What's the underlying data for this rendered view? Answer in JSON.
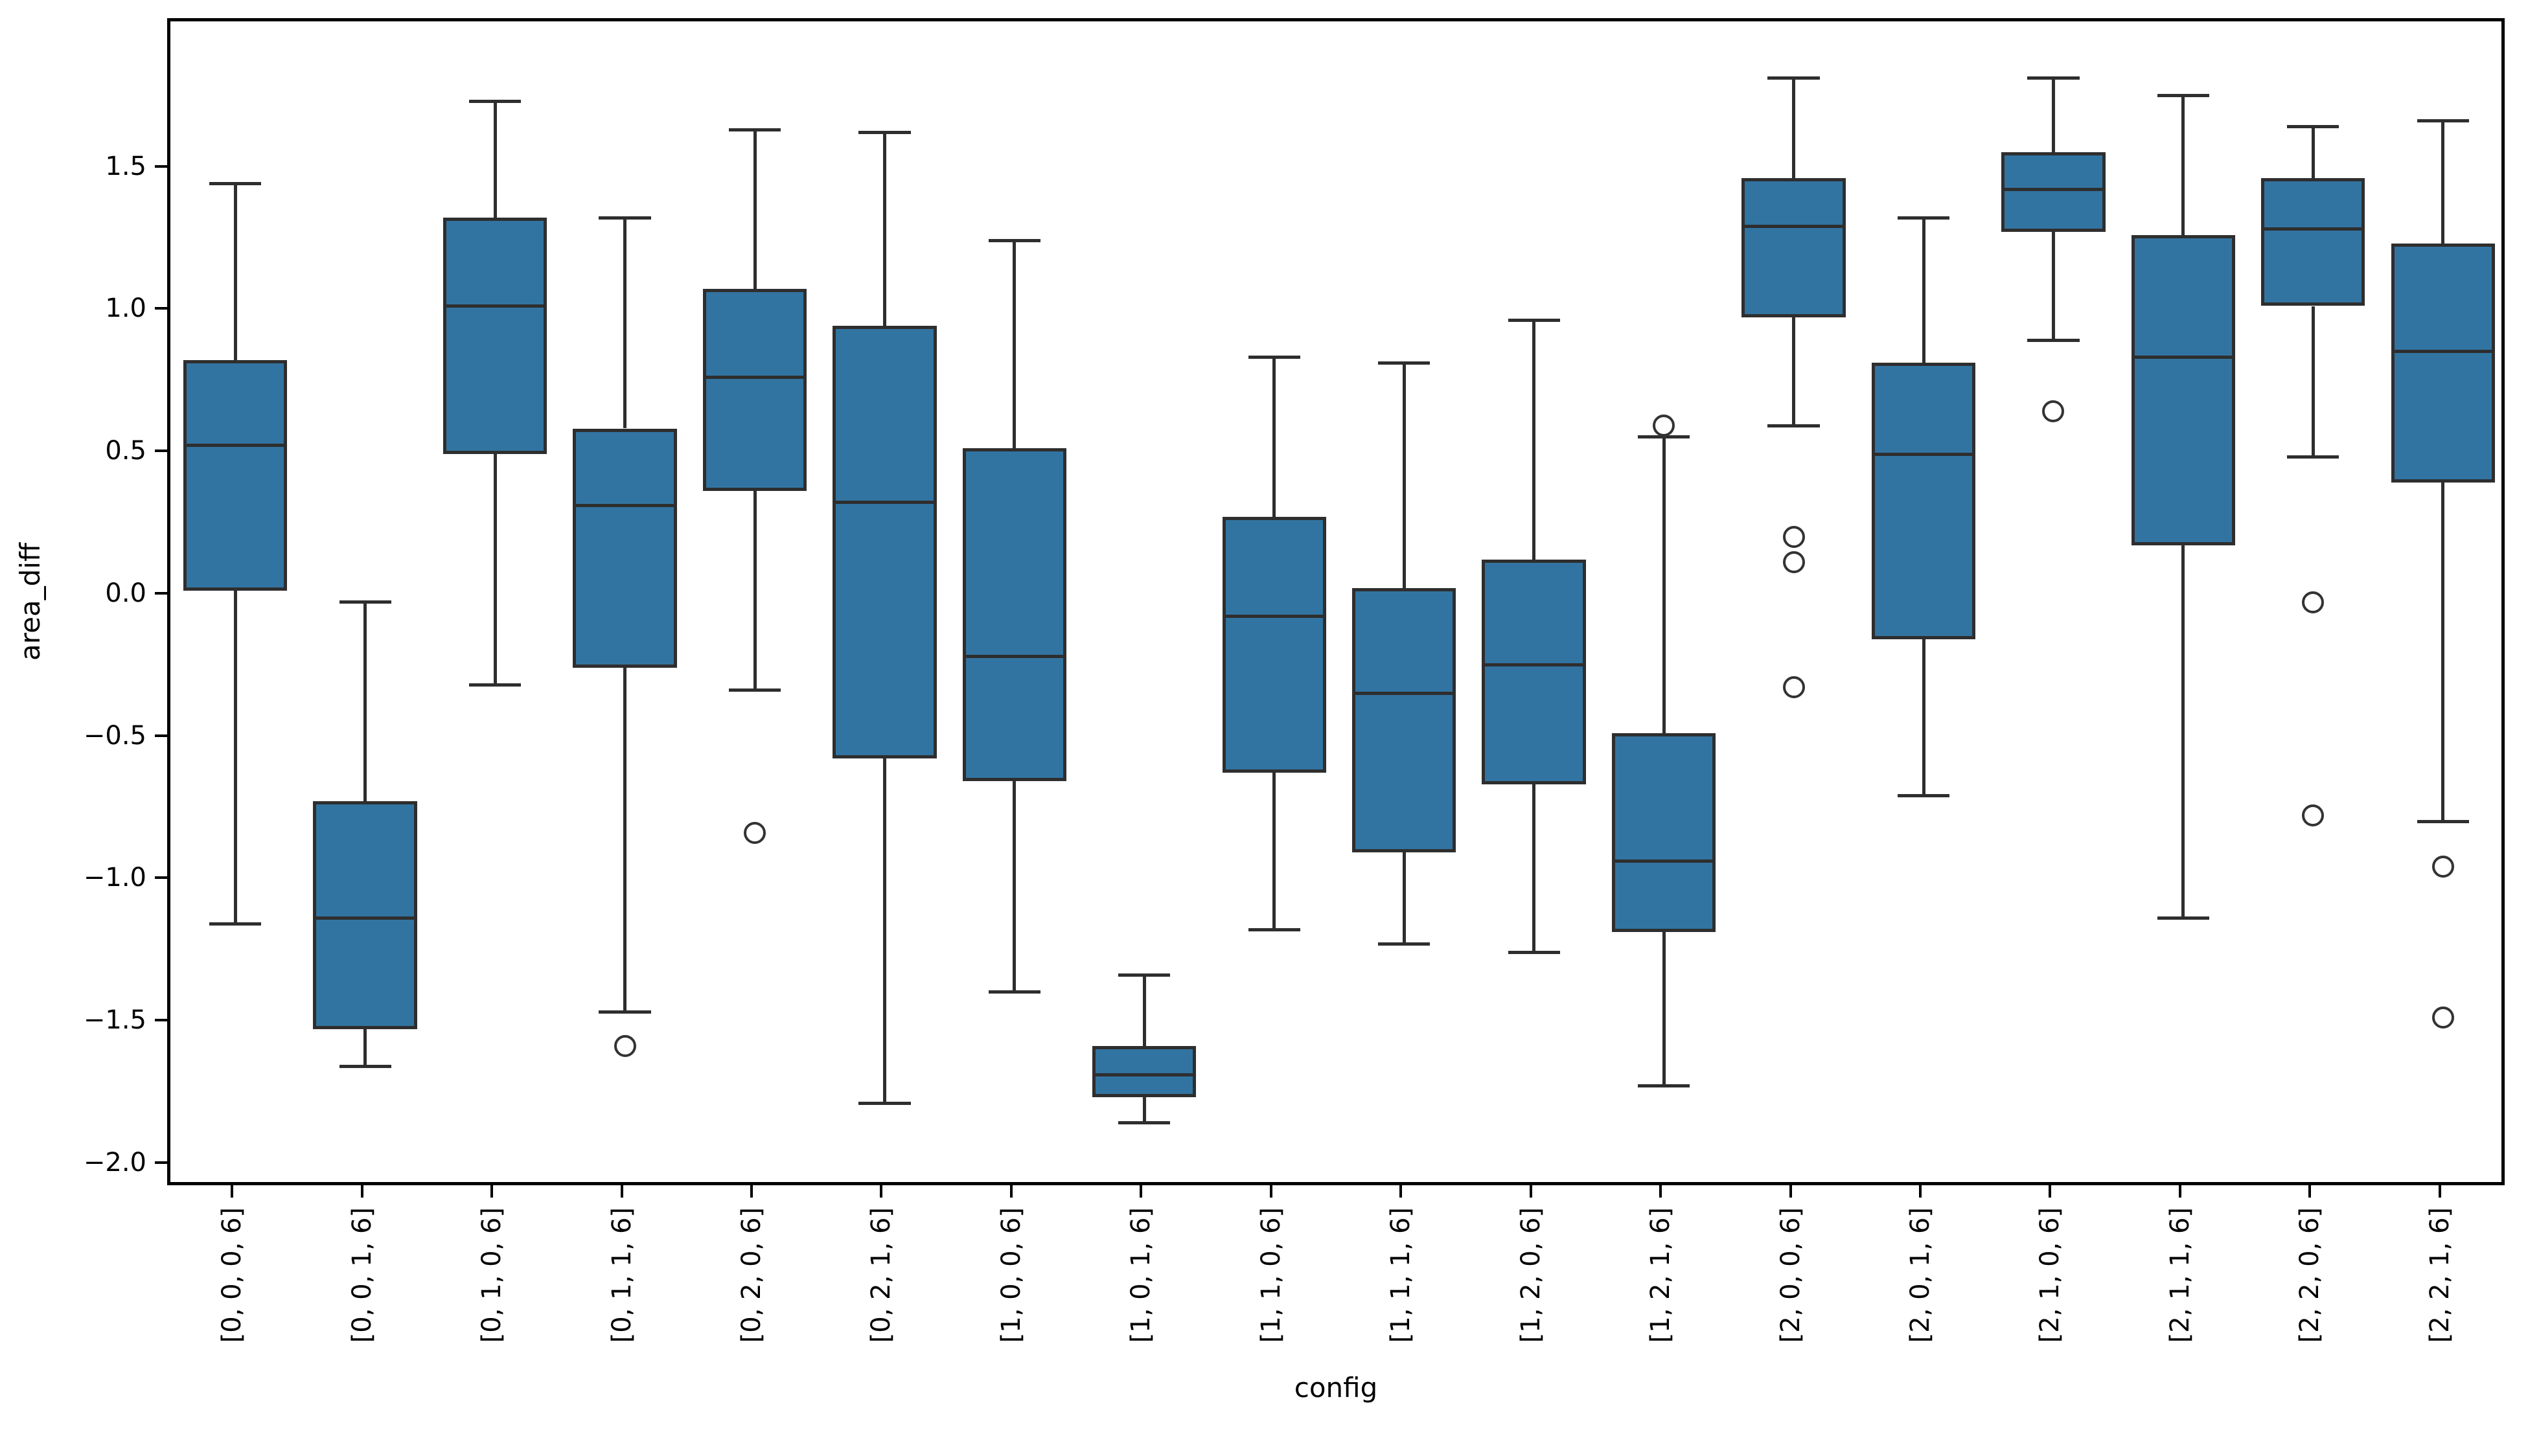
{
  "chart_data": {
    "type": "box",
    "title": "",
    "xlabel": "config",
    "ylabel": "area_diff",
    "grid": false,
    "legend_position": "none",
    "box_fill_color": "#3274A1",
    "box_line_color": "#2e2e2e",
    "axis_color": "#000000",
    "ylim": [
      -2.08,
      2.02
    ],
    "yticks": [
      1.5,
      1.0,
      0.5,
      0.0,
      -0.5,
      -1.0,
      -1.5,
      -2.0
    ],
    "ytick_labels": [
      "1.5",
      "1.0",
      "0.5",
      "0.0",
      "−0.5",
      "−1.0",
      "−1.5",
      "−2.0"
    ],
    "categories": [
      "[0, 0, 0, 6]",
      "[0, 0, 1, 6]",
      "[0, 1, 0, 6]",
      "[0, 1, 1, 6]",
      "[0, 2, 0, 6]",
      "[0, 2, 1, 6]",
      "[1, 0, 0, 6]",
      "[1, 0, 1, 6]",
      "[1, 1, 0, 6]",
      "[1, 1, 1, 6]",
      "[1, 2, 0, 6]",
      "[1, 2, 1, 6]",
      "[2, 0, 0, 6]",
      "[2, 0, 1, 6]",
      "[2, 1, 0, 6]",
      "[2, 1, 1, 6]",
      "[2, 2, 0, 6]",
      "[2, 2, 1, 6]"
    ],
    "series": [
      {
        "category": "[0, 0, 0, 6]",
        "whisker_low": -1.15,
        "q1": 0.02,
        "median": 0.53,
        "q3": 0.83,
        "whisker_high": 1.45,
        "outliers": []
      },
      {
        "category": "[0, 0, 1, 6]",
        "whisker_low": -1.65,
        "q1": -1.52,
        "median": -1.13,
        "q3": -0.72,
        "whisker_high": -0.02,
        "outliers": []
      },
      {
        "category": "[0, 1, 0, 6]",
        "whisker_low": -0.31,
        "q1": 0.5,
        "median": 1.02,
        "q3": 1.33,
        "whisker_high": 1.74,
        "outliers": []
      },
      {
        "category": "[0, 1, 1, 6]",
        "whisker_low": -1.46,
        "q1": -0.25,
        "median": 0.32,
        "q3": 0.59,
        "whisker_high": 1.33,
        "outliers": [
          -1.58
        ]
      },
      {
        "category": "[0, 2, 0, 6]",
        "whisker_low": -0.33,
        "q1": 0.37,
        "median": 0.77,
        "q3": 1.08,
        "whisker_high": 1.64,
        "outliers": [
          -0.83
        ]
      },
      {
        "category": "[0, 2, 1, 6]",
        "whisker_low": -1.78,
        "q1": -0.57,
        "median": 0.33,
        "q3": 0.95,
        "whisker_high": 1.63,
        "outliers": []
      },
      {
        "category": "[1, 0, 0, 6]",
        "whisker_low": -1.39,
        "q1": -0.65,
        "median": -0.21,
        "q3": 0.52,
        "whisker_high": 1.25,
        "outliers": []
      },
      {
        "category": "[1, 0, 1, 6]",
        "whisker_low": -1.85,
        "q1": -1.76,
        "median": -1.68,
        "q3": -1.58,
        "whisker_high": -1.33,
        "outliers": []
      },
      {
        "category": "[1, 1, 0, 6]",
        "whisker_low": -1.17,
        "q1": -0.62,
        "median": -0.07,
        "q3": 0.28,
        "whisker_high": 0.84,
        "outliers": []
      },
      {
        "category": "[1, 1, 1, 6]",
        "whisker_low": -1.22,
        "q1": -0.9,
        "median": -0.34,
        "q3": 0.03,
        "whisker_high": 0.82,
        "outliers": []
      },
      {
        "category": "[1, 2, 0, 6]",
        "whisker_low": -1.25,
        "q1": -0.66,
        "median": -0.24,
        "q3": 0.13,
        "whisker_high": 0.97,
        "outliers": []
      },
      {
        "category": "[1, 2, 1, 6]",
        "whisker_low": -1.72,
        "q1": -1.18,
        "median": -0.93,
        "q3": -0.48,
        "whisker_high": 0.56,
        "outliers": [
          0.6
        ]
      },
      {
        "category": "[2, 0, 0, 6]",
        "whisker_low": 0.6,
        "q1": 0.98,
        "median": 1.3,
        "q3": 1.47,
        "whisker_high": 1.82,
        "outliers": [
          0.21,
          0.12,
          -0.32
        ]
      },
      {
        "category": "[2, 0, 1, 6]",
        "whisker_low": -0.7,
        "q1": -0.15,
        "median": 0.5,
        "q3": 0.82,
        "whisker_high": 1.33,
        "outliers": []
      },
      {
        "category": "[2, 1, 0, 6]",
        "whisker_low": 0.9,
        "q1": 1.28,
        "median": 1.43,
        "q3": 1.56,
        "whisker_high": 1.82,
        "outliers": [
          0.65
        ]
      },
      {
        "category": "[2, 1, 1, 6]",
        "whisker_low": -1.13,
        "q1": 0.18,
        "median": 0.84,
        "q3": 1.27,
        "whisker_high": 1.76,
        "outliers": []
      },
      {
        "category": "[2, 2, 0, 6]",
        "whisker_low": 0.49,
        "q1": 1.02,
        "median": 1.29,
        "q3": 1.47,
        "whisker_high": 1.65,
        "outliers": [
          -0.02,
          -0.77
        ]
      },
      {
        "category": "[2, 2, 1, 6]",
        "whisker_low": -0.79,
        "q1": 0.4,
        "median": 0.86,
        "q3": 1.24,
        "whisker_high": 1.67,
        "outliers": [
          -0.95,
          -1.48
        ]
      }
    ]
  }
}
